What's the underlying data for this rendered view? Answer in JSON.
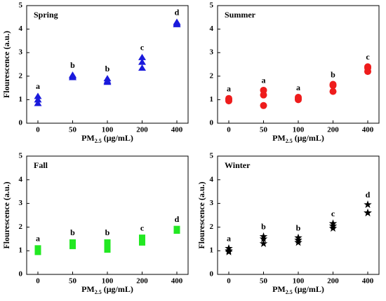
{
  "chart_data": [
    {
      "type": "scatter",
      "title": "Spring",
      "ylabel": "Flourescence (a.u.)",
      "xlabel": [
        "PM",
        "2.5",
        " (μg/mL)"
      ],
      "categories": [
        "0",
        "50",
        "100",
        "200",
        "400"
      ],
      "ylim": [
        0,
        5
      ],
      "yticks": [
        0,
        1,
        2,
        3,
        4,
        5
      ],
      "series": [
        {
          "color": "#1a1adc",
          "marker": "triangle",
          "values": [
            [
              0.85,
              1.0,
              1.15
            ],
            [
              1.95,
              2.0,
              2.05
            ],
            [
              1.75,
              1.8,
              1.9
            ],
            [
              2.35,
              2.6,
              2.8
            ],
            [
              4.2,
              4.25,
              4.3
            ]
          ]
        }
      ],
      "annotations": [
        "a",
        "b",
        "b",
        "c",
        "d"
      ]
    },
    {
      "type": "scatter",
      "title": "Summer",
      "xlabel": [
        "PM",
        "2.5",
        " (μg/mL)"
      ],
      "categories": [
        "0",
        "50",
        "100",
        "200",
        "400"
      ],
      "ylim": [
        0,
        5
      ],
      "yticks": [
        0,
        1,
        2,
        3,
        4,
        5
      ],
      "series": [
        {
          "color": "#ee1c1c",
          "marker": "circle",
          "values": [
            [
              0.95,
              1.0,
              1.05
            ],
            [
              0.75,
              1.2,
              1.4
            ],
            [
              1.0,
              1.05,
              1.1
            ],
            [
              1.35,
              1.6,
              1.65
            ],
            [
              2.2,
              2.35,
              2.4
            ]
          ]
        }
      ],
      "annotations": [
        "a",
        "a",
        "a",
        "b",
        "c"
      ]
    },
    {
      "type": "scatter",
      "title": "Fall",
      "ylabel": "Flourescence (a.u.)",
      "xlabel": [
        "PM",
        "2.5",
        " (μg/mL)"
      ],
      "categories": [
        "0",
        "50",
        "100",
        "200",
        "400"
      ],
      "ylim": [
        0,
        5
      ],
      "yticks": [
        0,
        1,
        2,
        3,
        4,
        5
      ],
      "series": [
        {
          "color": "#22e822",
          "marker": "square",
          "values": [
            [
              0.95,
              1.0,
              1.1
            ],
            [
              1.2,
              1.3,
              1.35
            ],
            [
              1.05,
              1.2,
              1.35
            ],
            [
              1.35,
              1.45,
              1.55
            ],
            [
              1.85,
              1.9,
              1.92
            ]
          ]
        }
      ],
      "annotations": [
        "a",
        "b",
        "b",
        "c",
        "d"
      ]
    },
    {
      "type": "scatter",
      "title": "Winter",
      "ylabel": "Flourescence (a.u.)",
      "xlabel": [
        "PM",
        "2.5",
        " (μg/mL)"
      ],
      "categories": [
        "0",
        "50",
        "100",
        "200",
        "400"
      ],
      "ylim": [
        0,
        5
      ],
      "yticks": [
        0,
        1,
        2,
        3,
        4,
        5
      ],
      "series": [
        {
          "color": "#000000",
          "marker": "star",
          "values": [
            [
              0.95,
              1.0,
              1.1
            ],
            [
              1.3,
              1.5,
              1.6
            ],
            [
              1.35,
              1.45,
              1.55
            ],
            [
              1.95,
              2.05,
              2.15
            ],
            [
              2.6,
              2.6,
              2.95
            ]
          ]
        }
      ],
      "annotations": [
        "a",
        "b",
        "b",
        "c",
        "d"
      ]
    }
  ]
}
